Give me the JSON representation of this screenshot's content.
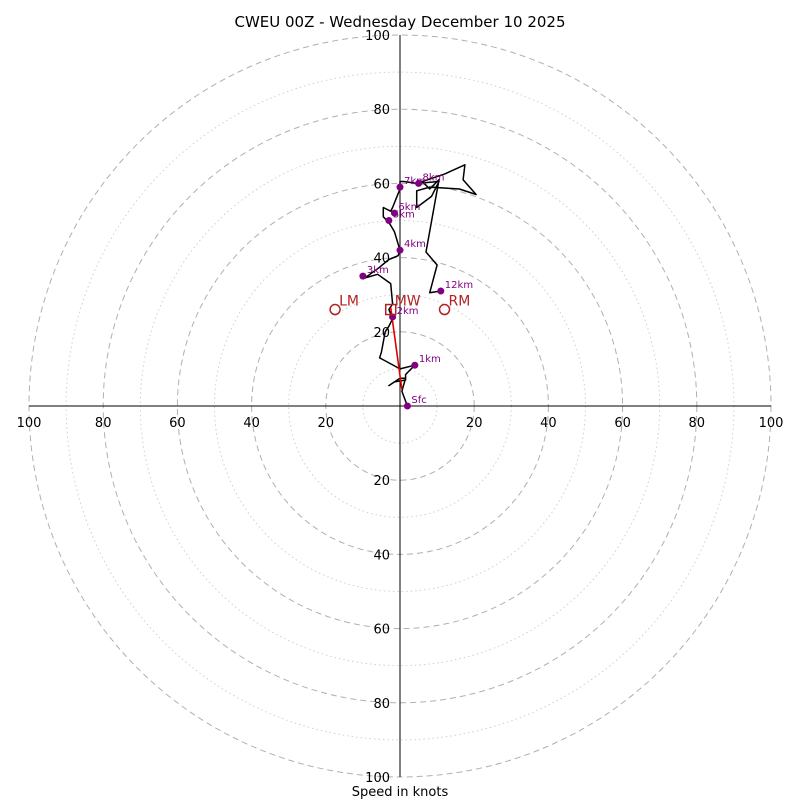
{
  "chart_data": {
    "type": "hodograph",
    "title": "CWEU 00Z - Wednesday December 10 2025",
    "xlabel": "Speed in knots",
    "units": "knots",
    "range": [
      -100,
      100
    ],
    "major_rings": [
      20,
      40,
      60,
      80,
      100
    ],
    "minor_rings": [
      10,
      30,
      50,
      70,
      90
    ],
    "x_tick_labels": [
      {
        "u": -100,
        "text": "100"
      },
      {
        "u": -80,
        "text": "80"
      },
      {
        "u": -60,
        "text": "60"
      },
      {
        "u": -40,
        "text": "40"
      },
      {
        "u": -20,
        "text": "20"
      },
      {
        "u": 20,
        "text": "20"
      },
      {
        "u": 40,
        "text": "40"
      },
      {
        "u": 60,
        "text": "60"
      },
      {
        "u": 80,
        "text": "80"
      },
      {
        "u": 100,
        "text": "100"
      }
    ],
    "y_tick_labels": [
      {
        "v": 100,
        "text": "100"
      },
      {
        "v": 80,
        "text": "80"
      },
      {
        "v": 60,
        "text": "60"
      },
      {
        "v": 40,
        "text": "40"
      },
      {
        "v": 20,
        "text": "20"
      },
      {
        "v": -20,
        "text": "20"
      },
      {
        "v": -40,
        "text": "40"
      },
      {
        "v": -60,
        "text": "60"
      },
      {
        "v": -80,
        "text": "80"
      },
      {
        "v": -100,
        "text": "100"
      }
    ],
    "hodograph": [
      [
        2,
        0
      ],
      [
        0.5,
        4
      ],
      [
        1.5,
        7.5
      ],
      [
        0,
        7.5
      ],
      [
        -3,
        5.5
      ],
      [
        -1.5,
        6.5
      ],
      [
        1.5,
        7
      ],
      [
        1.5,
        8.5
      ],
      [
        4,
        11
      ],
      [
        0,
        10
      ],
      [
        -5.5,
        13
      ],
      [
        -5,
        14.5
      ],
      [
        -4,
        20
      ],
      [
        -3,
        21.5
      ],
      [
        -2,
        23.5
      ],
      [
        -3,
        26
      ],
      [
        -2,
        27.5
      ],
      [
        -2.5,
        33
      ],
      [
        -6,
        35.5
      ],
      [
        -9.5,
        34.5
      ],
      [
        -6,
        37
      ],
      [
        -3,
        39.5
      ],
      [
        -0.5,
        40.5
      ],
      [
        0,
        42
      ],
      [
        -1.5,
        47
      ],
      [
        -3,
        49.5
      ],
      [
        -4.5,
        51
      ],
      [
        -4.5,
        53.5
      ],
      [
        -2.5,
        52.5
      ],
      [
        -2,
        53.5
      ],
      [
        -1,
        56
      ],
      [
        0,
        58.5
      ],
      [
        0,
        60.5
      ],
      [
        1,
        60.5
      ],
      [
        4.5,
        60
      ],
      [
        10.5,
        60.5
      ],
      [
        8.5,
        56.5
      ],
      [
        4.5,
        53.5
      ],
      [
        4.5,
        58
      ],
      [
        8,
        59
      ],
      [
        16,
        58.5
      ],
      [
        20.5,
        57
      ],
      [
        17,
        61
      ],
      [
        17.5,
        65
      ],
      [
        12,
        62.5
      ],
      [
        6,
        60.5
      ],
      [
        8,
        58.5
      ],
      [
        10.5,
        61
      ],
      [
        7,
        41.5
      ],
      [
        10,
        38
      ],
      [
        8,
        30.5
      ],
      [
        11,
        31
      ]
    ],
    "points": [
      {
        "label": "Sfc",
        "u": 2,
        "v": 0
      },
      {
        "label": "1km",
        "u": 4,
        "v": 11
      },
      {
        "label": "2km",
        "u": -2,
        "v": 24
      },
      {
        "label": "3km",
        "u": -10,
        "v": 35
      },
      {
        "label": "4km",
        "u": 0,
        "v": 42
      },
      {
        "label": "5km",
        "u": -3,
        "v": 50
      },
      {
        "label": "6km",
        "u": -1.5,
        "v": 52
      },
      {
        "label": "7km",
        "u": 0,
        "v": 59
      },
      {
        "label": "8km",
        "u": 5,
        "v": 60
      },
      {
        "label": "12km",
        "u": 11,
        "v": 31
      }
    ],
    "shear_vector": {
      "from": [
        0.5,
        4.5
      ],
      "to": [
        -2.5,
        26.5
      ]
    },
    "storm_motion": [
      {
        "label": "LM",
        "u": -17.5,
        "v": 26,
        "marker": "circle"
      },
      {
        "label": "MW",
        "u": -2.5,
        "v": 26,
        "marker": "square"
      },
      {
        "label": "RM",
        "u": 12,
        "v": 26,
        "marker": "circle"
      }
    ]
  }
}
